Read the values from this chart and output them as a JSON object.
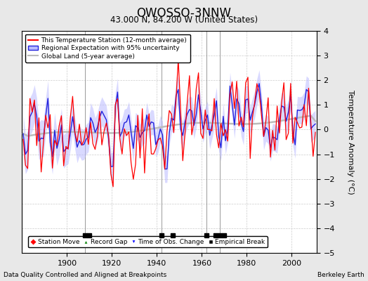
{
  "title": "OWOSSO-3NNW",
  "subtitle": "43.000 N, 84.200 W (United States)",
  "ylabel": "Temperature Anomaly (°C)",
  "xlabel_left": "Data Quality Controlled and Aligned at Breakpoints",
  "xlabel_right": "Berkeley Earth",
  "year_start": 1880,
  "year_end": 2011,
  "ylim": [
    -5,
    4
  ],
  "yticks": [
    -5,
    -4,
    -3,
    -2,
    -1,
    0,
    1,
    2,
    3,
    4
  ],
  "xticks": [
    1900,
    1920,
    1940,
    1960,
    1980,
    2000
  ],
  "bg_color": "#e8e8e8",
  "plot_bg_color": "#ffffff",
  "red_color": "#ff0000",
  "blue_color": "#2222dd",
  "blue_fill_color": "#bbbbff",
  "gray_color": "#bbbbbb",
  "empirical_breaks_x": [
    1908,
    1910,
    1942,
    1947,
    1962,
    1966,
    1968,
    1970
  ],
  "vertical_lines": [
    1908,
    1942,
    1962,
    1968
  ],
  "seed": 17
}
